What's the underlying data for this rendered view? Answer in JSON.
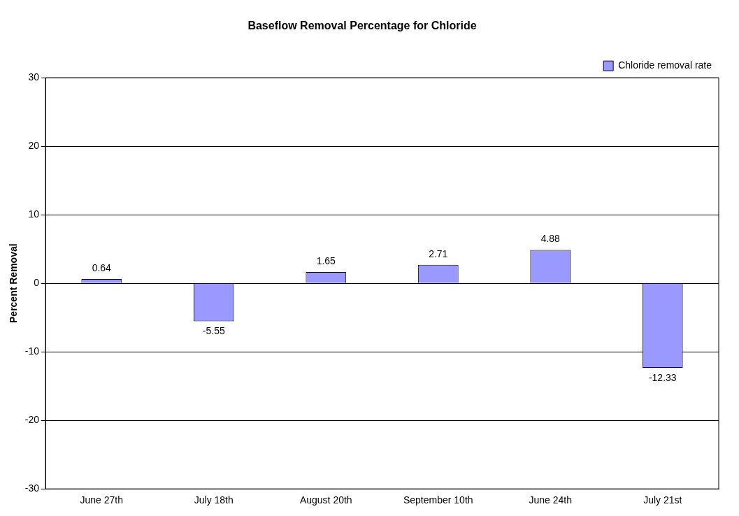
{
  "chart_data": {
    "type": "bar",
    "title": "Baseflow Removal Percentage for Chloride",
    "ylabel": "Percent Removal",
    "categories": [
      "June 27th",
      "July 18th",
      "August 20th",
      "September 10th",
      "June 24th",
      "July 21st"
    ],
    "series": [
      {
        "name": "Chloride removal rate",
        "color": "#9999ff",
        "values": [
          0.64,
          -5.55,
          1.65,
          2.71,
          4.88,
          -12.33
        ]
      }
    ],
    "ylim": [
      -30,
      30
    ],
    "yticks": [
      -30,
      -20,
      -10,
      0,
      10,
      20,
      30
    ],
    "grid": "y",
    "legend": "top right",
    "data_labels": true
  }
}
